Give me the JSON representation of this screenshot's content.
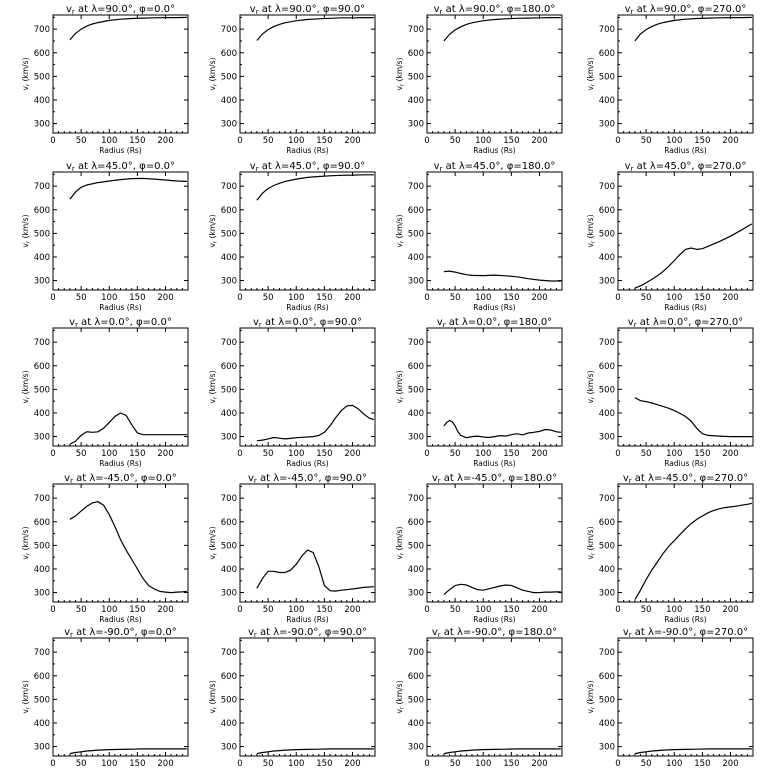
{
  "chart_data": {
    "type": "line",
    "layout": "grid",
    "rows": 5,
    "cols": 4,
    "xlabel": "Radius (Rs)",
    "ylabel": "vr (km/s)",
    "xlim": [
      0,
      240
    ],
    "ylim": [
      260,
      760
    ],
    "xticks": [
      0,
      50,
      100,
      150,
      200
    ],
    "yticks": [
      300,
      400,
      500,
      600,
      700
    ],
    "panels": [
      {
        "title": "vr at λ=90.0°, φ=0.0°",
        "x": [
          30,
          40,
          50,
          60,
          70,
          80,
          100,
          120,
          140,
          160,
          180,
          200,
          220,
          238
        ],
        "y": [
          655,
          682,
          700,
          713,
          722,
          728,
          737,
          742,
          745,
          747,
          748,
          749,
          749,
          750
        ]
      },
      {
        "title": "vr at λ=90.0°, φ=90.0°",
        "x": [
          30,
          40,
          50,
          60,
          70,
          80,
          100,
          120,
          140,
          160,
          180,
          200,
          220,
          238
        ],
        "y": [
          652,
          680,
          698,
          711,
          720,
          727,
          736,
          741,
          744,
          746,
          748,
          748,
          749,
          749
        ]
      },
      {
        "title": "vr at λ=90.0°, φ=180.0°",
        "x": [
          30,
          40,
          50,
          60,
          70,
          80,
          100,
          120,
          140,
          160,
          180,
          200,
          220,
          238
        ],
        "y": [
          650,
          678,
          697,
          710,
          720,
          727,
          736,
          741,
          744,
          746,
          747,
          748,
          749,
          749
        ]
      },
      {
        "title": "vr at λ=90.0°, φ=270.0°",
        "x": [
          30,
          40,
          50,
          60,
          70,
          80,
          100,
          120,
          140,
          160,
          180,
          200,
          220,
          238
        ],
        "y": [
          650,
          680,
          698,
          711,
          721,
          728,
          737,
          742,
          745,
          747,
          748,
          749,
          749,
          750
        ]
      },
      {
        "title": "vr at λ=45.0°, φ=0.0°",
        "x": [
          30,
          40,
          50,
          60,
          80,
          100,
          120,
          140,
          160,
          180,
          200,
          220,
          238
        ],
        "y": [
          645,
          675,
          695,
          705,
          715,
          722,
          728,
          732,
          733,
          730,
          726,
          722,
          720
        ]
      },
      {
        "title": "vr at λ=45.0°, φ=90.0°",
        "x": [
          30,
          40,
          50,
          60,
          70,
          80,
          100,
          120,
          140,
          160,
          180,
          200,
          220,
          238
        ],
        "y": [
          640,
          670,
          690,
          703,
          712,
          720,
          730,
          737,
          741,
          744,
          746,
          747,
          748,
          748
        ]
      },
      {
        "title": "vr at λ=45.0°, φ=180.0°",
        "x": [
          30,
          40,
          50,
          60,
          70,
          80,
          100,
          120,
          140,
          160,
          180,
          200,
          220,
          238
        ],
        "y": [
          338,
          340,
          336,
          330,
          325,
          322,
          321,
          323,
          320,
          316,
          308,
          302,
          298,
          298
        ]
      },
      {
        "title": "vr at λ=45.0°, φ=270.0°",
        "x": [
          30,
          40,
          50,
          60,
          70,
          80,
          90,
          100,
          110,
          120,
          130,
          140,
          150,
          160,
          180,
          200,
          220,
          238
        ],
        "y": [
          268,
          278,
          290,
          305,
          320,
          338,
          360,
          385,
          410,
          432,
          438,
          432,
          435,
          445,
          465,
          488,
          515,
          540
        ]
      },
      {
        "title": "vr at λ=0.0°, φ=0.0°",
        "x": [
          30,
          40,
          50,
          60,
          70,
          80,
          90,
          100,
          110,
          120,
          130,
          140,
          150,
          160,
          180,
          200,
          220,
          238
        ],
        "y": [
          268,
          280,
          305,
          320,
          318,
          320,
          335,
          360,
          385,
          400,
          390,
          350,
          315,
          308,
          308,
          308,
          308,
          308
        ]
      },
      {
        "title": "vr at λ=0.0°, φ=90.0°",
        "x": [
          30,
          40,
          50,
          60,
          70,
          80,
          90,
          100,
          110,
          120,
          130,
          140,
          150,
          160,
          170,
          180,
          190,
          200,
          210,
          220,
          230,
          238
        ],
        "y": [
          282,
          285,
          290,
          296,
          293,
          290,
          292,
          295,
          297,
          298,
          300,
          305,
          318,
          345,
          380,
          410,
          430,
          432,
          418,
          395,
          378,
          372
        ]
      },
      {
        "title": "vr at λ=0.0°, φ=180.0°",
        "x": [
          30,
          35,
          40,
          45,
          50,
          55,
          60,
          70,
          80,
          90,
          100,
          110,
          120,
          130,
          140,
          150,
          160,
          170,
          180,
          190,
          200,
          210,
          220,
          230,
          238
        ],
        "y": [
          345,
          360,
          368,
          362,
          345,
          320,
          305,
          295,
          300,
          302,
          298,
          296,
          300,
          304,
          302,
          308,
          312,
          307,
          315,
          318,
          322,
          330,
          328,
          320,
          318
        ]
      },
      {
        "title": "vr at λ=0.0°, φ=270.0°",
        "x": [
          30,
          40,
          50,
          60,
          70,
          80,
          90,
          100,
          110,
          120,
          130,
          140,
          150,
          160,
          180,
          200,
          220,
          238
        ],
        "y": [
          465,
          452,
          448,
          442,
          435,
          428,
          420,
          410,
          398,
          385,
          365,
          335,
          312,
          305,
          302,
          300,
          300,
          300
        ]
      },
      {
        "title": "vr at λ=-45.0°, φ=0.0°",
        "x": [
          30,
          40,
          50,
          60,
          70,
          80,
          90,
          100,
          110,
          120,
          130,
          140,
          150,
          160,
          170,
          180,
          190,
          200,
          210,
          220,
          230,
          238
        ],
        "y": [
          610,
          625,
          645,
          665,
          680,
          685,
          670,
          630,
          580,
          525,
          480,
          440,
          400,
          360,
          330,
          315,
          305,
          302,
          300,
          302,
          303,
          305
        ]
      },
      {
        "title": "vr at λ=-45.0°, φ=90.0°",
        "x": [
          30,
          40,
          50,
          60,
          70,
          80,
          90,
          100,
          110,
          120,
          130,
          140,
          150,
          160,
          170,
          180,
          200,
          220,
          238
        ],
        "y": [
          318,
          360,
          390,
          390,
          385,
          385,
          395,
          420,
          455,
          480,
          470,
          410,
          330,
          308,
          306,
          310,
          315,
          322,
          325
        ]
      },
      {
        "title": "vr at λ=-45.0°, φ=180.0°",
        "x": [
          30,
          40,
          50,
          60,
          70,
          80,
          90,
          100,
          110,
          120,
          130,
          140,
          150,
          160,
          170,
          180,
          190,
          200,
          210,
          220,
          230,
          238
        ],
        "y": [
          292,
          312,
          330,
          335,
          332,
          322,
          312,
          310,
          316,
          322,
          328,
          332,
          330,
          320,
          310,
          305,
          300,
          300,
          302,
          302,
          303,
          303
        ]
      },
      {
        "title": "vr at λ=-45.0°, φ=270.0°",
        "x": [
          30,
          40,
          50,
          60,
          70,
          80,
          90,
          100,
          110,
          120,
          130,
          140,
          150,
          160,
          170,
          180,
          190,
          200,
          210,
          220,
          230,
          238
        ],
        "y": [
          270,
          310,
          355,
          395,
          430,
          465,
          495,
          520,
          545,
          570,
          592,
          610,
          625,
          638,
          648,
          655,
          660,
          663,
          666,
          670,
          674,
          678
        ]
      },
      {
        "title": "vr at λ=-90.0°, φ=0.0°",
        "x": [
          30,
          40,
          50,
          60,
          70,
          80,
          100,
          120,
          140,
          160,
          180,
          200,
          220,
          238
        ],
        "y": [
          270,
          275,
          278,
          281,
          283,
          285,
          287,
          288,
          289,
          290,
          290,
          290,
          290,
          290
        ]
      },
      {
        "title": "vr at λ=-90.0°, φ=90.0°",
        "x": [
          30,
          40,
          50,
          60,
          70,
          80,
          100,
          120,
          140,
          160,
          180,
          200,
          220,
          238
        ],
        "y": [
          270,
          275,
          278,
          281,
          283,
          285,
          287,
          288,
          289,
          290,
          290,
          290,
          290,
          290
        ]
      },
      {
        "title": "vr at λ=-90.0°, φ=180.0°",
        "x": [
          30,
          40,
          50,
          60,
          70,
          80,
          100,
          120,
          140,
          160,
          180,
          200,
          220,
          238
        ],
        "y": [
          270,
          275,
          278,
          281,
          283,
          285,
          287,
          288,
          289,
          290,
          290,
          290,
          290,
          290
        ]
      },
      {
        "title": "vr at λ=-90.0°, φ=270.0°",
        "x": [
          30,
          40,
          50,
          60,
          70,
          80,
          100,
          120,
          140,
          160,
          180,
          200,
          220,
          238
        ],
        "y": [
          270,
          275,
          278,
          281,
          283,
          285,
          287,
          288,
          289,
          290,
          290,
          290,
          290,
          290
        ]
      }
    ]
  }
}
